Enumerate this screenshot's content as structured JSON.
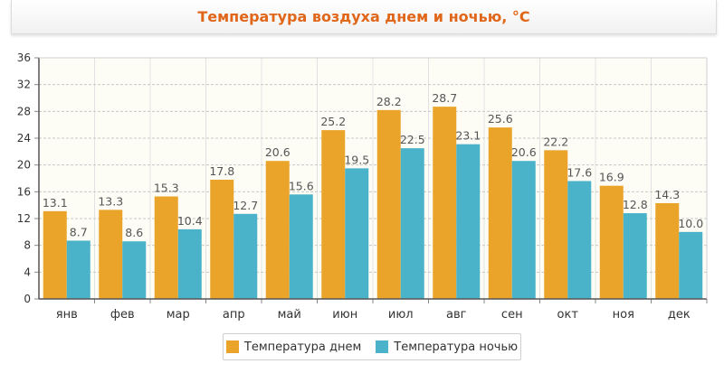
{
  "colors": {
    "day": "#eba42a",
    "night": "#4ab3c9",
    "title": "#e0661a",
    "plot_bg": "#fdfdf6",
    "grid": "#c8c8c8"
  },
  "chart_data": {
    "type": "bar",
    "title": "Температура воздуха днем и ночью, °C",
    "categories": [
      "янв",
      "фев",
      "мар",
      "апр",
      "май",
      "июн",
      "июл",
      "авг",
      "сен",
      "окт",
      "ноя",
      "дек"
    ],
    "series": [
      {
        "name": "Температура днем",
        "values": [
          13.1,
          13.3,
          15.3,
          17.8,
          20.6,
          25.2,
          28.2,
          28.7,
          25.6,
          22.2,
          16.9,
          14.3
        ]
      },
      {
        "name": "Температура ночью",
        "values": [
          8.7,
          8.6,
          10.4,
          12.7,
          15.6,
          19.5,
          22.5,
          23.1,
          20.6,
          17.6,
          12.8,
          10.0
        ]
      }
    ],
    "ylim": [
      0,
      36
    ],
    "yticks": [
      0,
      4,
      8,
      12,
      16,
      20,
      24,
      28,
      32,
      36
    ],
    "grid": true,
    "legend_position": "bottom-center",
    "xlabel": "",
    "ylabel": ""
  }
}
